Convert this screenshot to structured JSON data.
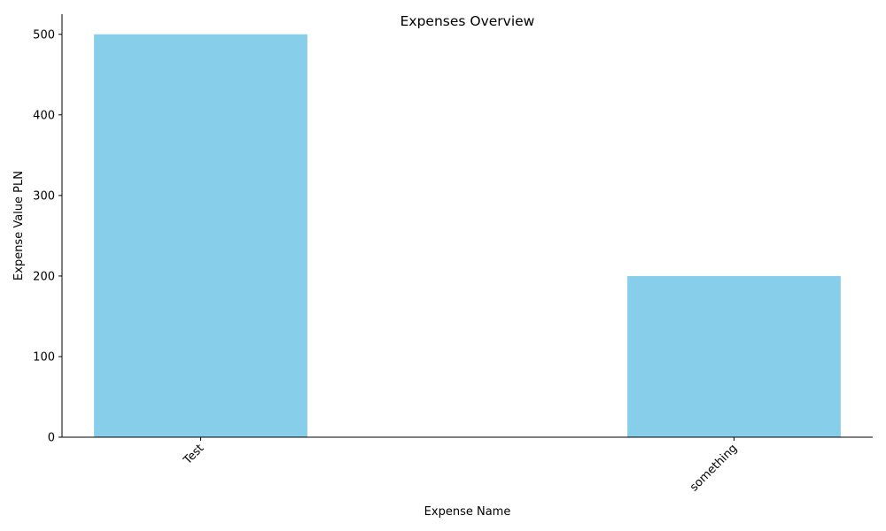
{
  "chart_data": {
    "type": "bar",
    "title": "Expenses Overview",
    "xlabel": "Expense Name",
    "ylabel": "Expense Value PLN",
    "categories": [
      "Test",
      "something"
    ],
    "values": [
      500,
      200
    ],
    "ylim": [
      0,
      525
    ],
    "yticks": [
      0,
      100,
      200,
      300,
      400,
      500
    ],
    "ytick_labels": [
      "0",
      "100",
      "200",
      "300",
      "400",
      "500"
    ],
    "xtick_rotation": 45,
    "grid": false,
    "legend": "none",
    "bar_color": "#87CEEB",
    "axis_color": "#000000"
  }
}
